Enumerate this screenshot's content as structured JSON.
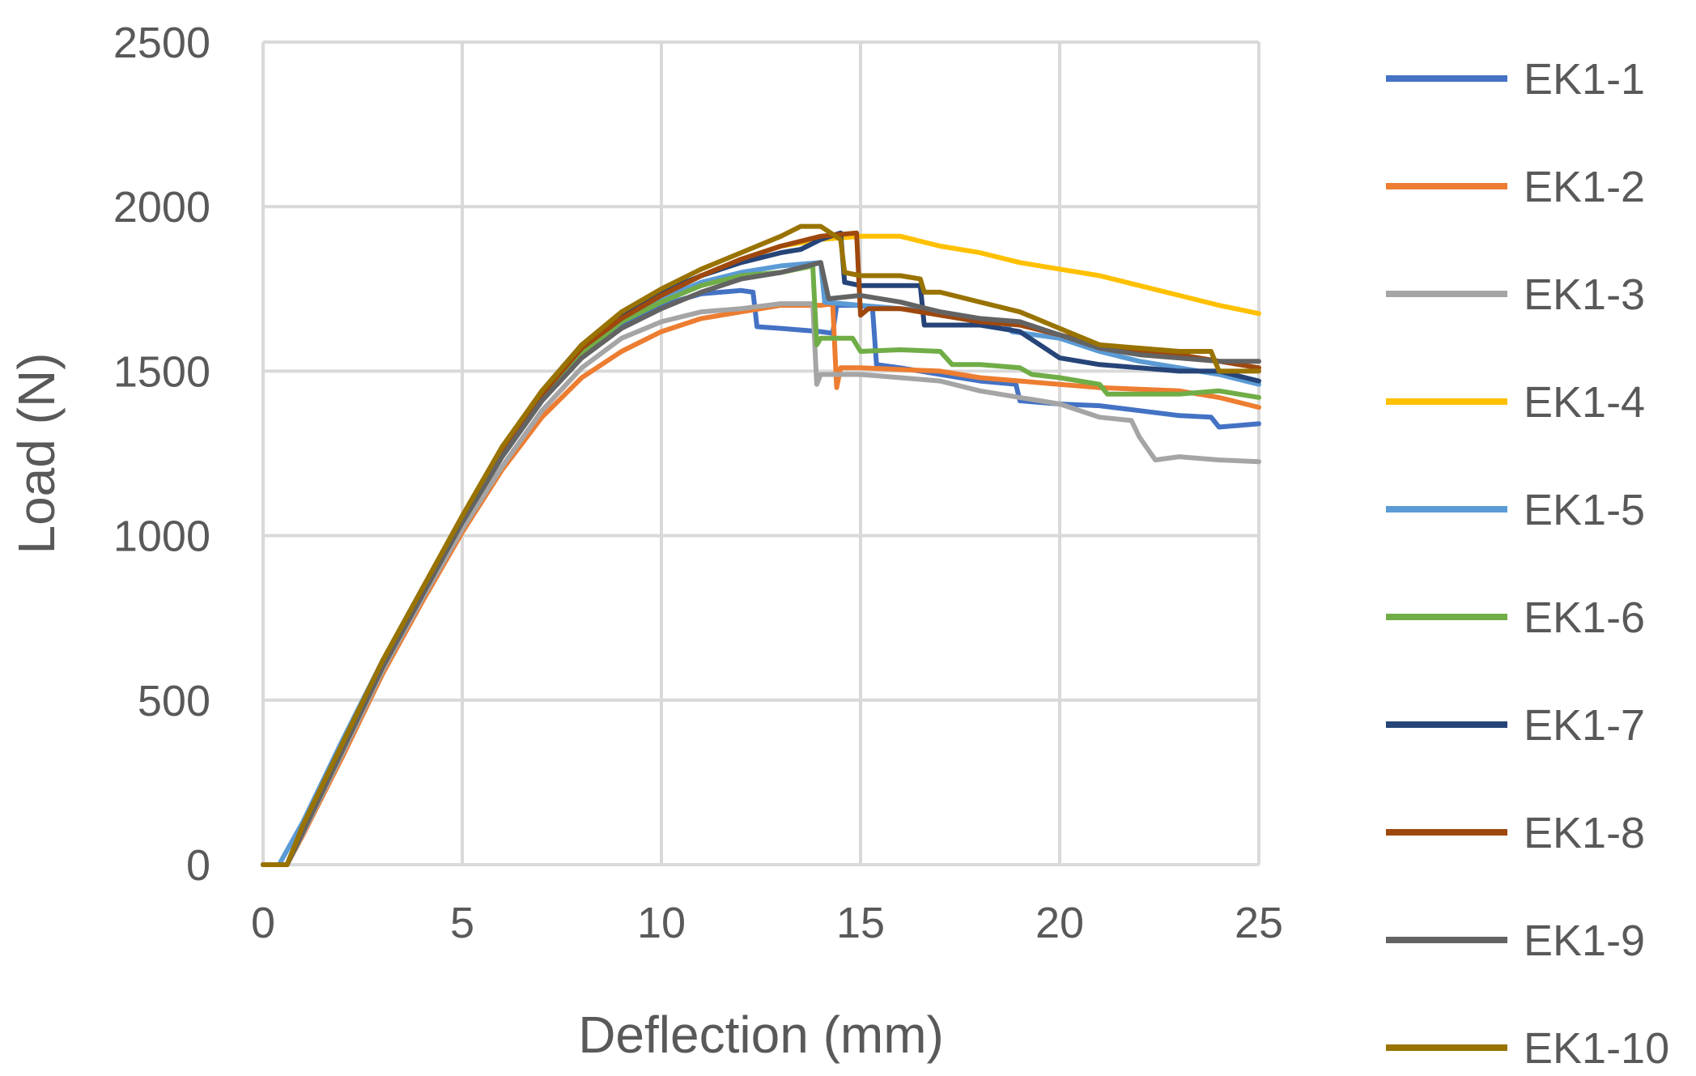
{
  "chart_data": {
    "type": "line",
    "title": "",
    "xlabel": "Deflection (mm)",
    "ylabel": "Load (N)",
    "xlim": [
      0,
      25
    ],
    "ylim": [
      0,
      2500
    ],
    "xticks": [
      0,
      5,
      10,
      15,
      20,
      25
    ],
    "yticks": [
      0,
      500,
      1000,
      1500,
      2000,
      2500
    ],
    "grid": true,
    "legend_position": "right",
    "series": [
      {
        "name": "EK1-1",
        "color": "#4472C4",
        "points": [
          [
            0,
            0
          ],
          [
            0.6,
            0
          ],
          [
            1,
            100
          ],
          [
            2,
            350
          ],
          [
            3,
            600
          ],
          [
            4,
            820
          ],
          [
            5,
            1040
          ],
          [
            6,
            1240
          ],
          [
            7,
            1410
          ],
          [
            8,
            1545
          ],
          [
            9,
            1640
          ],
          [
            10,
            1700
          ],
          [
            11,
            1735
          ],
          [
            12,
            1745
          ],
          [
            12.3,
            1740
          ],
          [
            12.4,
            1635
          ],
          [
            13,
            1630
          ],
          [
            14,
            1620
          ],
          [
            14.3,
            1615
          ],
          [
            14.4,
            1700
          ],
          [
            15,
            1700
          ],
          [
            15.3,
            1690
          ],
          [
            15.4,
            1520
          ],
          [
            16,
            1510
          ],
          [
            17,
            1490
          ],
          [
            18,
            1470
          ],
          [
            18.9,
            1460
          ],
          [
            19,
            1410
          ],
          [
            20,
            1400
          ],
          [
            21,
            1395
          ],
          [
            22,
            1380
          ],
          [
            23,
            1365
          ],
          [
            23.8,
            1360
          ],
          [
            24,
            1330
          ],
          [
            25,
            1340
          ]
        ]
      },
      {
        "name": "EK1-2",
        "color": "#ED7D31",
        "points": [
          [
            0,
            0
          ],
          [
            0.6,
            0
          ],
          [
            1,
            90
          ],
          [
            2,
            330
          ],
          [
            3,
            580
          ],
          [
            4,
            800
          ],
          [
            5,
            1010
          ],
          [
            6,
            1200
          ],
          [
            7,
            1360
          ],
          [
            8,
            1480
          ],
          [
            9,
            1560
          ],
          [
            10,
            1620
          ],
          [
            11,
            1660
          ],
          [
            12,
            1680
          ],
          [
            13,
            1700
          ],
          [
            14,
            1700
          ],
          [
            14.3,
            1705
          ],
          [
            14.4,
            1450
          ],
          [
            14.5,
            1510
          ],
          [
            15,
            1510
          ],
          [
            16,
            1505
          ],
          [
            17,
            1500
          ],
          [
            18,
            1480
          ],
          [
            19,
            1470
          ],
          [
            20,
            1460
          ],
          [
            21,
            1450
          ],
          [
            22,
            1445
          ],
          [
            23,
            1440
          ],
          [
            24,
            1420
          ],
          [
            25,
            1390
          ]
        ]
      },
      {
        "name": "EK1-3",
        "color": "#A5A5A5",
        "points": [
          [
            0,
            0
          ],
          [
            0.6,
            0
          ],
          [
            1,
            95
          ],
          [
            2,
            340
          ],
          [
            3,
            590
          ],
          [
            4,
            810
          ],
          [
            5,
            1020
          ],
          [
            6,
            1210
          ],
          [
            7,
            1380
          ],
          [
            8,
            1510
          ],
          [
            9,
            1600
          ],
          [
            10,
            1650
          ],
          [
            11,
            1680
          ],
          [
            12,
            1690
          ],
          [
            13,
            1705
          ],
          [
            13.8,
            1705
          ],
          [
            13.9,
            1460
          ],
          [
            14,
            1490
          ],
          [
            15,
            1490
          ],
          [
            16,
            1480
          ],
          [
            17,
            1470
          ],
          [
            18,
            1440
          ],
          [
            19,
            1420
          ],
          [
            20,
            1400
          ],
          [
            21,
            1360
          ],
          [
            21.8,
            1350
          ],
          [
            22,
            1300
          ],
          [
            22.4,
            1230
          ],
          [
            23,
            1240
          ],
          [
            24,
            1230
          ],
          [
            25,
            1225
          ]
        ]
      },
      {
        "name": "EK1-4",
        "color": "#FFC000",
        "points": [
          [
            0,
            0
          ],
          [
            0.6,
            0
          ],
          [
            1,
            110
          ],
          [
            2,
            360
          ],
          [
            3,
            610
          ],
          [
            4,
            830
          ],
          [
            5,
            1050
          ],
          [
            6,
            1260
          ],
          [
            7,
            1430
          ],
          [
            8,
            1565
          ],
          [
            9,
            1660
          ],
          [
            10,
            1730
          ],
          [
            11,
            1790
          ],
          [
            12,
            1840
          ],
          [
            13,
            1880
          ],
          [
            14,
            1900
          ],
          [
            15,
            1910
          ],
          [
            16,
            1910
          ],
          [
            17,
            1880
          ],
          [
            18,
            1860
          ],
          [
            19,
            1830
          ],
          [
            20,
            1810
          ],
          [
            21,
            1790
          ],
          [
            22,
            1760
          ],
          [
            23,
            1730
          ],
          [
            24,
            1700
          ],
          [
            25,
            1675
          ]
        ]
      },
      {
        "name": "EK1-5",
        "color": "#5B9BD5",
        "points": [
          [
            0,
            0
          ],
          [
            0.4,
            0
          ],
          [
            1,
            130
          ],
          [
            2,
            380
          ],
          [
            3,
            620
          ],
          [
            4,
            840
          ],
          [
            5,
            1050
          ],
          [
            6,
            1250
          ],
          [
            7,
            1420
          ],
          [
            8,
            1555
          ],
          [
            9,
            1650
          ],
          [
            10,
            1720
          ],
          [
            11,
            1770
          ],
          [
            12,
            1800
          ],
          [
            13,
            1820
          ],
          [
            14,
            1830
          ],
          [
            14.1,
            1710
          ],
          [
            15,
            1700
          ],
          [
            16,
            1690
          ],
          [
            17,
            1680
          ],
          [
            18,
            1660
          ],
          [
            18.6,
            1650
          ],
          [
            18.8,
            1620
          ],
          [
            20,
            1600
          ],
          [
            21,
            1560
          ],
          [
            22,
            1530
          ],
          [
            23,
            1510
          ],
          [
            24,
            1490
          ],
          [
            25,
            1460
          ]
        ]
      },
      {
        "name": "EK1-6",
        "color": "#70AD47",
        "points": [
          [
            0,
            0
          ],
          [
            0.6,
            0
          ],
          [
            1,
            105
          ],
          [
            2,
            355
          ],
          [
            3,
            605
          ],
          [
            4,
            825
          ],
          [
            5,
            1045
          ],
          [
            6,
            1250
          ],
          [
            7,
            1420
          ],
          [
            8,
            1555
          ],
          [
            9,
            1650
          ],
          [
            10,
            1710
          ],
          [
            11,
            1760
          ],
          [
            12,
            1790
          ],
          [
            13,
            1800
          ],
          [
            13.8,
            1820
          ],
          [
            13.9,
            1580
          ],
          [
            14,
            1600
          ],
          [
            14.8,
            1600
          ],
          [
            15,
            1560
          ],
          [
            16,
            1565
          ],
          [
            17,
            1560
          ],
          [
            17.3,
            1520
          ],
          [
            18,
            1520
          ],
          [
            19,
            1510
          ],
          [
            19.3,
            1490
          ],
          [
            20,
            1480
          ],
          [
            21,
            1460
          ],
          [
            21.2,
            1430
          ],
          [
            22,
            1430
          ],
          [
            23,
            1430
          ],
          [
            24,
            1440
          ],
          [
            25,
            1420
          ]
        ]
      },
      {
        "name": "EK1-7",
        "color": "#264478",
        "points": [
          [
            0,
            0
          ],
          [
            0.6,
            0
          ],
          [
            1,
            100
          ],
          [
            2,
            360
          ],
          [
            3,
            610
          ],
          [
            4,
            830
          ],
          [
            5,
            1055
          ],
          [
            6,
            1260
          ],
          [
            7,
            1440
          ],
          [
            8,
            1580
          ],
          [
            9,
            1670
          ],
          [
            10,
            1740
          ],
          [
            11,
            1790
          ],
          [
            12,
            1830
          ],
          [
            13,
            1860
          ],
          [
            13.5,
            1870
          ],
          [
            14,
            1900
          ],
          [
            14.5,
            1920
          ],
          [
            14.6,
            1770
          ],
          [
            15,
            1760
          ],
          [
            16,
            1760
          ],
          [
            16.5,
            1760
          ],
          [
            16.6,
            1640
          ],
          [
            17,
            1640
          ],
          [
            18,
            1640
          ],
          [
            19,
            1620
          ],
          [
            20,
            1540
          ],
          [
            21,
            1520
          ],
          [
            22,
            1510
          ],
          [
            23,
            1500
          ],
          [
            24,
            1500
          ],
          [
            25,
            1470
          ]
        ]
      },
      {
        "name": "EK1-8",
        "color": "#9E480E",
        "points": [
          [
            0,
            0
          ],
          [
            0.6,
            0
          ],
          [
            1,
            110
          ],
          [
            2,
            365
          ],
          [
            3,
            615
          ],
          [
            4,
            835
          ],
          [
            5,
            1055
          ],
          [
            6,
            1260
          ],
          [
            7,
            1430
          ],
          [
            8,
            1570
          ],
          [
            9,
            1660
          ],
          [
            10,
            1730
          ],
          [
            11,
            1790
          ],
          [
            12,
            1840
          ],
          [
            13,
            1880
          ],
          [
            14,
            1910
          ],
          [
            14.9,
            1920
          ],
          [
            15,
            1670
          ],
          [
            15.2,
            1690
          ],
          [
            16,
            1690
          ],
          [
            17,
            1670
          ],
          [
            18,
            1650
          ],
          [
            19,
            1640
          ],
          [
            20,
            1610
          ],
          [
            21,
            1580
          ],
          [
            22,
            1560
          ],
          [
            23,
            1550
          ],
          [
            24,
            1530
          ],
          [
            25,
            1510
          ]
        ]
      },
      {
        "name": "EK1-9",
        "color": "#636363",
        "points": [
          [
            0,
            0
          ],
          [
            0.6,
            0
          ],
          [
            1,
            100
          ],
          [
            2,
            350
          ],
          [
            3,
            600
          ],
          [
            4,
            820
          ],
          [
            5,
            1040
          ],
          [
            6,
            1240
          ],
          [
            7,
            1410
          ],
          [
            8,
            1540
          ],
          [
            9,
            1630
          ],
          [
            10,
            1690
          ],
          [
            11,
            1740
          ],
          [
            12,
            1780
          ],
          [
            13,
            1800
          ],
          [
            14,
            1830
          ],
          [
            14.2,
            1720
          ],
          [
            15,
            1730
          ],
          [
            16,
            1710
          ],
          [
            17,
            1680
          ],
          [
            18,
            1660
          ],
          [
            19,
            1650
          ],
          [
            20,
            1610
          ],
          [
            21,
            1570
          ],
          [
            22,
            1550
          ],
          [
            23,
            1540
          ],
          [
            24,
            1530
          ],
          [
            25,
            1530
          ]
        ]
      },
      {
        "name": "EK1-10",
        "color": "#997300",
        "points": [
          [
            0,
            0
          ],
          [
            0.6,
            0
          ],
          [
            1,
            120
          ],
          [
            2,
            370
          ],
          [
            3,
            620
          ],
          [
            4,
            840
          ],
          [
            5,
            1060
          ],
          [
            6,
            1270
          ],
          [
            7,
            1440
          ],
          [
            8,
            1580
          ],
          [
            9,
            1680
          ],
          [
            10,
            1750
          ],
          [
            11,
            1810
          ],
          [
            12,
            1860
          ],
          [
            13,
            1910
          ],
          [
            13.5,
            1940
          ],
          [
            14,
            1940
          ],
          [
            14.5,
            1900
          ],
          [
            14.6,
            1800
          ],
          [
            15,
            1790
          ],
          [
            16,
            1790
          ],
          [
            16.5,
            1780
          ],
          [
            16.6,
            1740
          ],
          [
            17,
            1740
          ],
          [
            18,
            1710
          ],
          [
            19,
            1680
          ],
          [
            20,
            1630
          ],
          [
            21,
            1580
          ],
          [
            22,
            1570
          ],
          [
            23,
            1560
          ],
          [
            23.8,
            1560
          ],
          [
            24,
            1500
          ],
          [
            25,
            1500
          ]
        ]
      }
    ]
  }
}
